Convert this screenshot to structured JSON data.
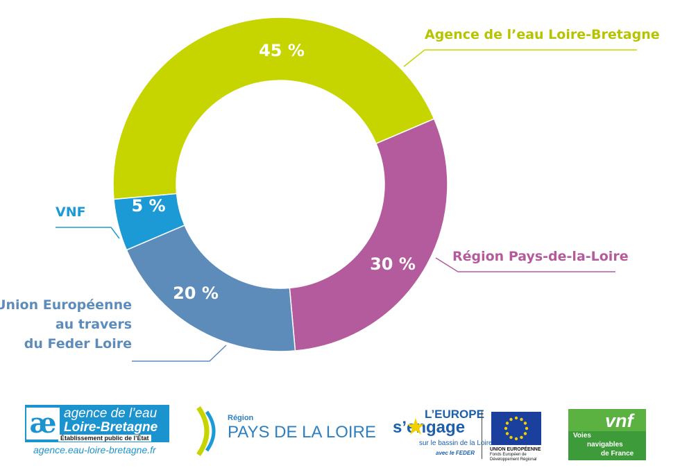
{
  "chart_data": {
    "type": "pie",
    "donut": true,
    "slices": [
      {
        "label": "Agence de l’eau Loire-Bretagne",
        "value": 45,
        "value_label": "45 %",
        "color": "#c6d500"
      },
      {
        "label": "Région Pays-de-la-Loire",
        "value": 30,
        "value_label": "30 %",
        "color": "#b45b9e"
      },
      {
        "label": [
          "Union Européenne",
          "au travers",
          "du Feder Loire"
        ],
        "value": 20,
        "value_label": "20 %",
        "color": "#5d8cbb"
      },
      {
        "label": "VNF",
        "value": 5,
        "value_label": "5 %",
        "color": "#1c9ad6"
      }
    ],
    "legend": "callout-labels"
  },
  "logos": {
    "agence": {
      "line1": "agence de l’eau",
      "line2": "Loire-Bretagne",
      "line3": "Établissement public de l’État",
      "url": "agence.eau-loire-bretagne.fr"
    },
    "region": {
      "small": "Région",
      "main": "PAYS DE LA LOIRE"
    },
    "europe": {
      "line1": "L’EUROPE",
      "line2": "s’engage",
      "line3": "sur le bassin de la Loire",
      "line4": "avec le FEDER",
      "flag_text1": "UNION EUROPÉENNE",
      "flag_text2": "Fonds Européen de",
      "flag_text3": "Développement Régional"
    },
    "vnf": {
      "name": "vnf",
      "line1": "Voies",
      "line2": "navigables",
      "line3": "de France"
    }
  }
}
